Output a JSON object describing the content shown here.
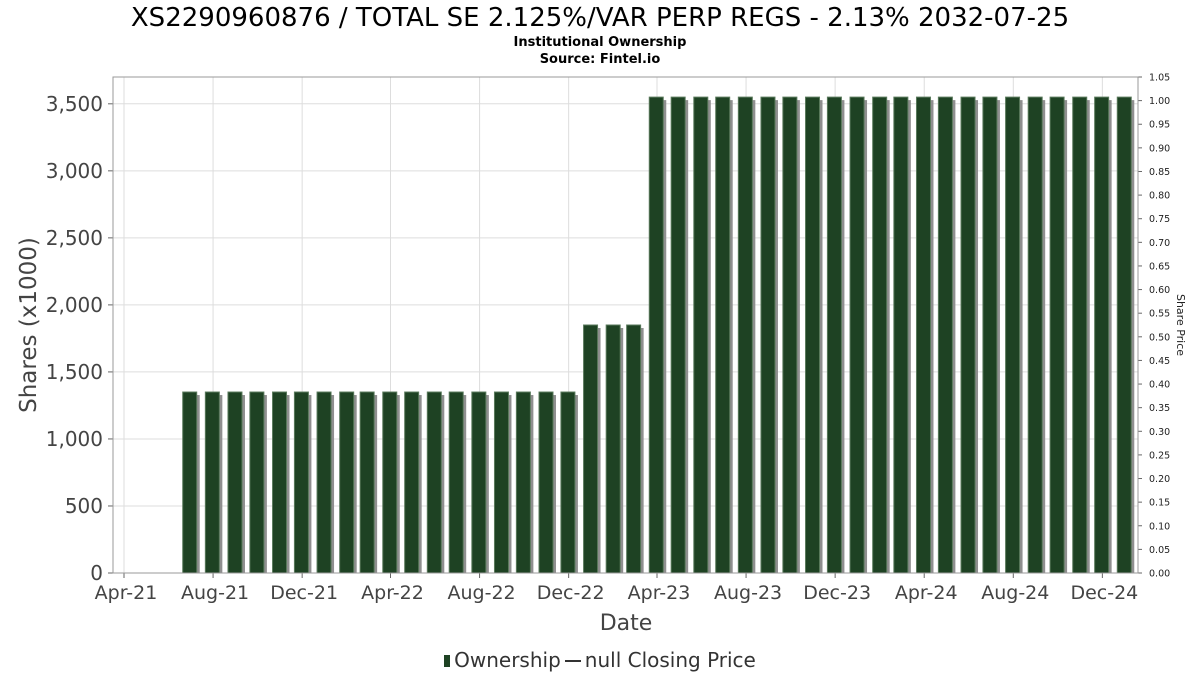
{
  "title": "XS2290960876 / TOTAL SE 2.125%/VAR PERP REGS - 2.13% 2032-07-25",
  "subtitle_1": "Institutional Ownership",
  "subtitle_2": "Source: Fintel.io",
  "legend": {
    "ownership": "Ownership",
    "price": "null Closing Price"
  },
  "colors": {
    "bar": "#1e4223",
    "bar_shadow": "#8f8f8f",
    "grid": "#dddddd",
    "axis": "#999999"
  },
  "chart_data": {
    "type": "bar",
    "xlabel": "Date",
    "ylabel": "Shares (x1000)",
    "y2label": "Share Price",
    "ylim": [
      0,
      3700
    ],
    "y2lim": [
      0,
      1.05
    ],
    "yticks": [
      0,
      500,
      1000,
      1500,
      2000,
      2500,
      3000,
      3500
    ],
    "ytick_labels": [
      "0",
      "500",
      "1,000",
      "1,500",
      "2,000",
      "2,500",
      "3,000",
      "3,500"
    ],
    "y2tick_labels": [
      "0.00",
      "0.05",
      "0.10",
      "0.15",
      "0.20",
      "0.25",
      "0.30",
      "0.35",
      "0.40",
      "0.45",
      "0.50",
      "0.55",
      "0.60",
      "0.65",
      "0.70",
      "0.75",
      "0.80",
      "0.85",
      "0.90",
      "0.95",
      "1.00",
      "1.05"
    ],
    "xlim": [
      "2021-04-01",
      "2025-01-01"
    ],
    "xtick_labels": [
      "Apr-21",
      "Aug-21",
      "Dec-21",
      "Apr-22",
      "Aug-22",
      "Dec-22",
      "Apr-23",
      "Aug-23",
      "Dec-23",
      "Apr-24",
      "Aug-24",
      "Dec-24"
    ],
    "xtick_dates": [
      "2021-04-01",
      "2021-08-01",
      "2021-12-01",
      "2022-04-01",
      "2022-08-01",
      "2022-12-01",
      "2023-04-01",
      "2023-08-01",
      "2023-12-01",
      "2024-04-01",
      "2024-08-01",
      "2024-12-01"
    ],
    "grid": true,
    "legend_position": "bottom",
    "series": [
      {
        "name": "Ownership",
        "dates": [
          "2021-06-30",
          "2021-07-31",
          "2021-08-31",
          "2021-09-30",
          "2021-10-31",
          "2021-11-30",
          "2021-12-31",
          "2022-01-31",
          "2022-02-28",
          "2022-03-31",
          "2022-04-30",
          "2022-05-31",
          "2022-06-30",
          "2022-07-31",
          "2022-08-31",
          "2022-09-30",
          "2022-10-31",
          "2022-11-30",
          "2022-12-31",
          "2023-01-31",
          "2023-02-28",
          "2023-03-31",
          "2023-04-30",
          "2023-05-31",
          "2023-06-30",
          "2023-07-31",
          "2023-08-31",
          "2023-09-30",
          "2023-10-31",
          "2023-11-30",
          "2023-12-31",
          "2024-01-31",
          "2024-02-29",
          "2024-03-31",
          "2024-04-30",
          "2024-05-31",
          "2024-06-30",
          "2024-07-31",
          "2024-08-31",
          "2024-09-30",
          "2024-10-31",
          "2024-11-30",
          "2024-12-31"
        ],
        "values": [
          1350,
          1350,
          1350,
          1350,
          1350,
          1350,
          1350,
          1350,
          1350,
          1350,
          1350,
          1350,
          1350,
          1350,
          1350,
          1350,
          1350,
          1350,
          1850,
          1850,
          1850,
          3550,
          3550,
          3550,
          3550,
          3550,
          3550,
          3550,
          3550,
          3550,
          3550,
          3550,
          3550,
          3550,
          3550,
          3550,
          3550,
          3550,
          3550,
          3550,
          3550,
          3550,
          3550
        ]
      }
    ]
  }
}
